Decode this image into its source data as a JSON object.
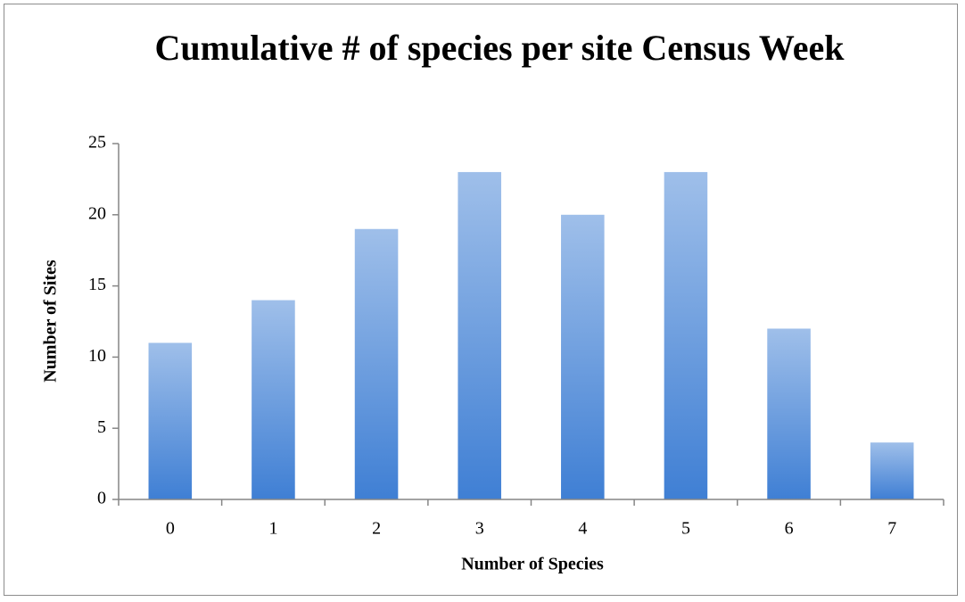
{
  "chart_data": {
    "type": "bar",
    "title": "Cumulative # of species per site Census Week",
    "x_label": "Number of Species",
    "y_label": "Number of Sites",
    "categories": [
      "0",
      "1",
      "2",
      "3",
      "4",
      "5",
      "6",
      "7"
    ],
    "values": [
      11,
      14,
      19,
      23,
      20,
      23,
      12,
      4
    ],
    "color": "#3f7fd4",
    "ylim": [
      0,
      25
    ],
    "yticks": [
      0,
      5,
      10,
      15,
      20,
      25
    ],
    "grid": false
  }
}
